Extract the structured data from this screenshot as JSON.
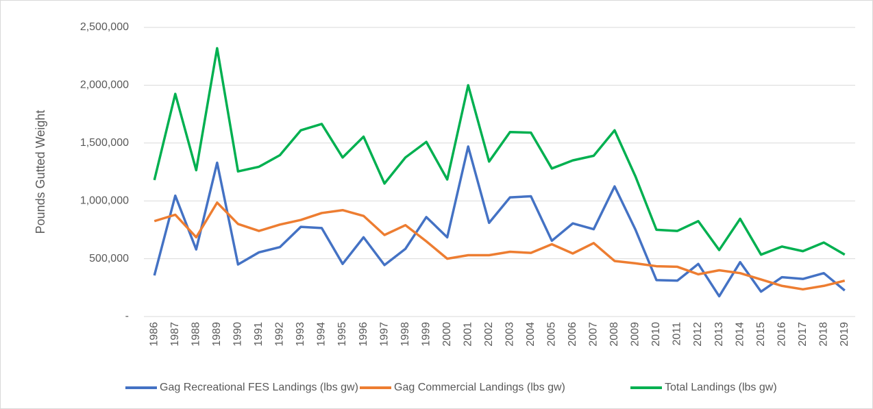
{
  "chart_data": {
    "type": "line",
    "y_label": "Pounds Gutted Weight",
    "categories": [
      "1986",
      "1987",
      "1988",
      "1989",
      "1990",
      "1991",
      "1992",
      "1993",
      "1994",
      "1995",
      "1996",
      "1997",
      "1998",
      "1999",
      "2000",
      "2001",
      "2002",
      "2003",
      "2004",
      "2005",
      "2006",
      "2007",
      "2008",
      "2009",
      "2010",
      "2011",
      "2012",
      "2013",
      "2014",
      "2015",
      "2016",
      "2017",
      "2018",
      "2019"
    ],
    "series": [
      {
        "name": "Gag Recreational FES Landings (lbs gw)",
        "color": "#4472c4",
        "values": [
          355000,
          1045000,
          580000,
          1330000,
          450000,
          555000,
          600000,
          775000,
          765000,
          455000,
          685000,
          445000,
          585000,
          860000,
          685000,
          1470000,
          810000,
          1030000,
          1040000,
          655000,
          805000,
          755000,
          1125000,
          750000,
          315000,
          310000,
          455000,
          175000,
          470000,
          215000,
          340000,
          325000,
          375000,
          225000
        ]
      },
      {
        "name": "Gag Commercial Landings (lbs gw)",
        "color": "#ed7d31",
        "values": [
          825000,
          880000,
          685000,
          985000,
          800000,
          740000,
          795000,
          835000,
          895000,
          920000,
          870000,
          705000,
          790000,
          650000,
          500000,
          530000,
          530000,
          560000,
          550000,
          625000,
          545000,
          635000,
          480000,
          460000,
          435000,
          430000,
          365000,
          400000,
          375000,
          320000,
          265000,
          235000,
          265000,
          310000
        ]
      },
      {
        "name": "Total Landings (lbs gw)",
        "color": "#00b050",
        "values": [
          1180000,
          1925000,
          1265000,
          2320000,
          1255000,
          1295000,
          1395000,
          1610000,
          1665000,
          1375000,
          1555000,
          1150000,
          1375000,
          1510000,
          1185000,
          2000000,
          1340000,
          1595000,
          1590000,
          1280000,
          1350000,
          1390000,
          1610000,
          1210000,
          750000,
          740000,
          825000,
          575000,
          845000,
          535000,
          605000,
          565000,
          640000,
          535000
        ]
      }
    ],
    "ylim": [
      0,
      2500000
    ],
    "yticks": [
      {
        "value": 0,
        "label": "-"
      },
      {
        "value": 500000,
        "label": "500,000"
      },
      {
        "value": 1000000,
        "label": "1,000,000"
      },
      {
        "value": 1500000,
        "label": "1,500,000"
      },
      {
        "value": 2000000,
        "label": "2,000,000"
      },
      {
        "value": 2500000,
        "label": "2,500,000"
      }
    ],
    "grid": true,
    "legend": "bottom"
  }
}
